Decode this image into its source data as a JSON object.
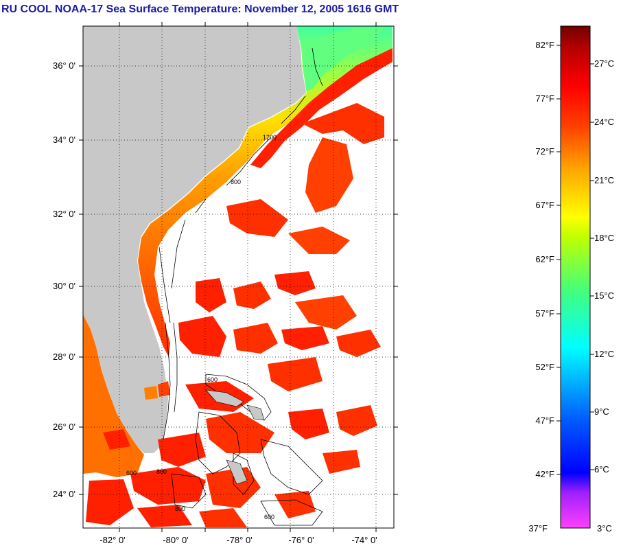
{
  "title": "RU COOL  NOAA-17  Sea Surface Temperature:  November 12, 2005 1616 GMT",
  "map": {
    "lat_labels": [
      "36° 0'",
      "34° 0'",
      "32° 0'",
      "30° 0'",
      "28° 0'",
      "26° 0'",
      "24° 0'"
    ],
    "lon_labels": [
      "-82° 0'",
      "-80° 0'",
      "-78° 0'",
      "-76° 0'",
      "-74° 0'"
    ],
    "contour_labels": [
      "1200",
      "800",
      "600",
      "600",
      "800",
      "600",
      "800"
    ],
    "colors": {
      "land": "#c8c8c8",
      "ocean_cloud": "#ffffff",
      "grid": "#000000"
    }
  },
  "colorbar": {
    "fahrenheit_labels": [
      "82°F",
      "77°F",
      "72°F",
      "67°F",
      "62°F",
      "57°F",
      "52°F",
      "47°F",
      "42°F",
      "37°F"
    ],
    "celsius_labels": [
      "27°C",
      "24°C",
      "21°C",
      "18°C",
      "15°C",
      "12°C",
      "9°C",
      "6°C",
      "3°C"
    ],
    "stops": [
      "#ff40ff",
      "#8020ff",
      "#0000ff",
      "#0080ff",
      "#00ffff",
      "#00ff80",
      "#80ff00",
      "#ffff00",
      "#ffa000",
      "#ff4000",
      "#ff0000",
      "#a00000",
      "#700000"
    ]
  }
}
